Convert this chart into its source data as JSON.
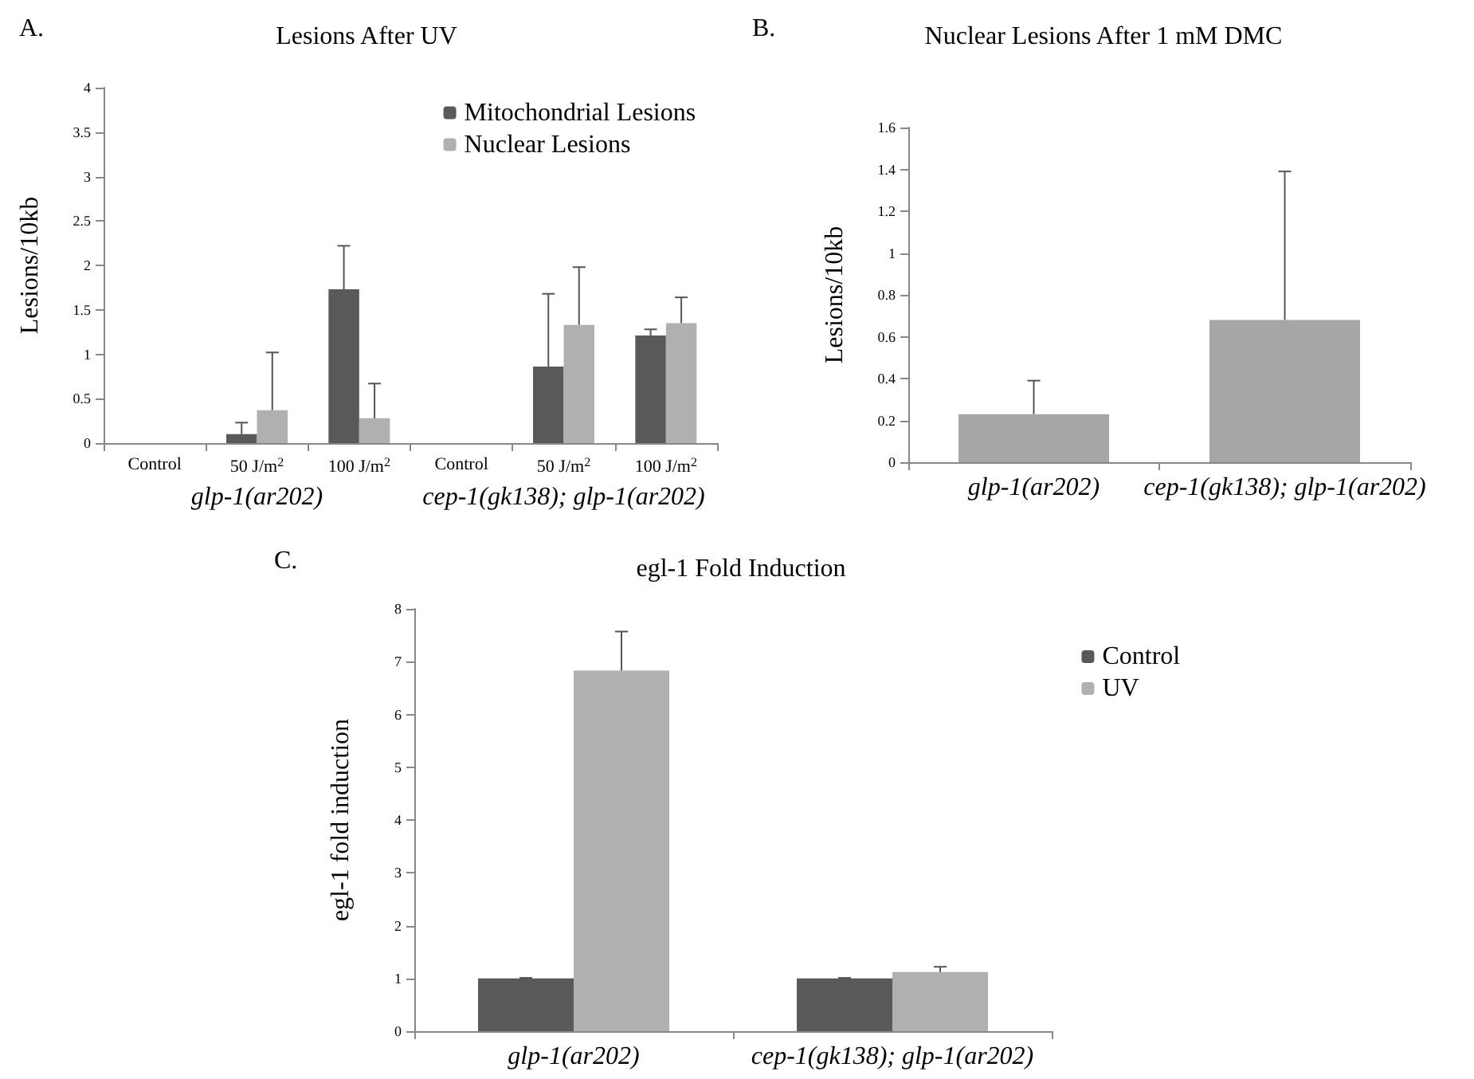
{
  "chart_data": [
    {
      "type": "bar",
      "title": "Lesions After UV",
      "ylabel": "Lesions/10kb",
      "categories": [
        "Control",
        "50 J/m$^{2}$",
        "100 J/m$^{2}$",
        "Control",
        "50 J/m$^{2}$",
        "100 J/m$^{2}$"
      ],
      "series": [
        {
          "name": "Mitochondrial Lesions",
          "color": "#595959",
          "values": [
            0,
            0.1,
            1.73,
            0,
            0.86,
            1.21
          ],
          "errors": [
            null,
            [
              0.1,
              0.23
            ],
            [
              1.73,
              2.22
            ],
            null,
            [
              0.86,
              1.68
            ],
            [
              1.21,
              1.28
            ]
          ]
        },
        {
          "name": "Nuclear Lesions",
          "color": "#b0b0b0",
          "values": [
            0,
            0.37,
            0.28,
            0,
            1.33,
            1.35
          ],
          "errors": [
            null,
            [
              0.37,
              1.02
            ],
            [
              0.28,
              0.67
            ],
            null,
            [
              1.33,
              1.98
            ],
            [
              1.35,
              1.64
            ]
          ]
        }
      ],
      "ylim": [
        0,
        4
      ],
      "yticks": [
        0,
        0.5,
        1,
        1.5,
        2,
        2.5,
        3,
        3.5,
        4
      ],
      "grid": false,
      "legend": "top right",
      "annotations": [
        "A.",
        "glp-1(ar202)",
        "cep-1(gk138); glp-1(ar202)"
      ]
    },
    {
      "type": "bar",
      "title": "Nuclear Lesions After 1 mM DMC",
      "ylabel": "Lesions/10kb",
      "categories": [
        "glp-1(ar202)",
        "cep-1(gk138); glp-1(ar202)"
      ],
      "series": [
        {
          "color": "#a6a6a6",
          "values": [
            0.23,
            0.68
          ],
          "errors": [
            [
              0.23,
              0.39
            ],
            [
              0.68,
              1.39
            ]
          ]
        }
      ],
      "ylim": [
        0,
        1.6
      ],
      "yticks": [
        0,
        0.2,
        0.4,
        0.6,
        0.8,
        1,
        1.2,
        1.4,
        1.6
      ],
      "grid": false,
      "annotations": [
        "B."
      ]
    },
    {
      "type": "bar",
      "title": "egl-1 Fold Induction",
      "ylabel": "egl-1 fold induction",
      "categories": [
        "glp-1(ar202)",
        "cep-1(gk138); glp-1(ar202)"
      ],
      "series": [
        {
          "name": "Control",
          "color": "#595959",
          "values": [
            1,
            1
          ],
          "errors": [
            [
              1,
              1.01
            ],
            [
              1,
              1.01
            ]
          ]
        },
        {
          "name": "UV",
          "color": "#b0b0b0",
          "values": [
            6.83,
            1.12
          ],
          "errors": [
            [
              6.83,
              7.57
            ],
            [
              1.12,
              1.22
            ]
          ]
        }
      ],
      "ylim": [
        0,
        8
      ],
      "yticks": [
        0,
        1,
        2,
        3,
        4,
        5,
        6,
        7,
        8
      ],
      "grid": false,
      "legend": "top right",
      "annotations": [
        "C."
      ]
    }
  ]
}
